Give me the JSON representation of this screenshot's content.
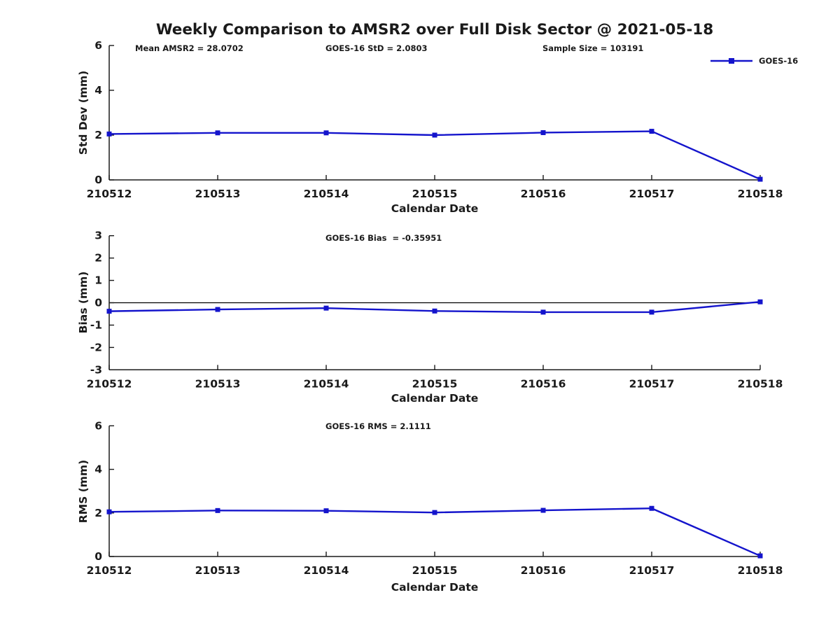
{
  "title": "Weekly Comparison to AMSR2 over Full Disk Sector @ 2021-05-18",
  "legend": {
    "label": "GOES-16",
    "color": "#1414cc"
  },
  "chart_data": [
    {
      "type": "line",
      "name": "std-dev-vs-date",
      "series_name": "GOES-16",
      "annotations": {
        "left": "Mean AMSR2 = 28.0702",
        "center": "GOES-16 StD = 2.0803",
        "right": "Sample Size = 103191"
      },
      "categories": [
        "210512",
        "210513",
        "210514",
        "210515",
        "210516",
        "210517",
        "210518"
      ],
      "values": [
        2.05,
        2.1,
        2.1,
        2.0,
        2.11,
        2.17,
        0.03
      ],
      "xlabel": "Calendar Date",
      "ylabel": "Std Dev (mm)",
      "ylim": [
        0,
        6
      ],
      "yticks": [
        0,
        2,
        4,
        6
      ],
      "grid": false,
      "zero_line": false,
      "line_color": "#1414cc",
      "marker": "square",
      "legend_position": "upper-right-outside"
    },
    {
      "type": "line",
      "name": "bias-vs-date",
      "series_name": "GOES-16",
      "annotations": {
        "center": "GOES-16 Bias  = -0.35951"
      },
      "categories": [
        "210512",
        "210513",
        "210514",
        "210515",
        "210516",
        "210517",
        "210518"
      ],
      "values": [
        -0.38,
        -0.3,
        -0.24,
        -0.37,
        -0.42,
        -0.42,
        0.04
      ],
      "xlabel": "Calendar Date",
      "ylabel": "Bias (mm)",
      "ylim": [
        -3,
        3
      ],
      "yticks": [
        -3,
        -2,
        -1,
        0,
        1,
        2,
        3
      ],
      "grid": false,
      "zero_line": true,
      "line_color": "#1414cc",
      "marker": "square"
    },
    {
      "type": "line",
      "name": "rms-vs-date",
      "series_name": "GOES-16",
      "annotations": {
        "center": "GOES-16 RMS = 2.1111"
      },
      "categories": [
        "210512",
        "210513",
        "210514",
        "210515",
        "210516",
        "210517",
        "210518"
      ],
      "values": [
        2.05,
        2.11,
        2.1,
        2.02,
        2.12,
        2.21,
        0.03
      ],
      "xlabel": "Calendar Date",
      "ylabel": "RMS (mm)",
      "ylim": [
        0,
        6
      ],
      "yticks": [
        0,
        2,
        4,
        6
      ],
      "grid": false,
      "zero_line": false,
      "line_color": "#1414cc",
      "marker": "square"
    }
  ]
}
